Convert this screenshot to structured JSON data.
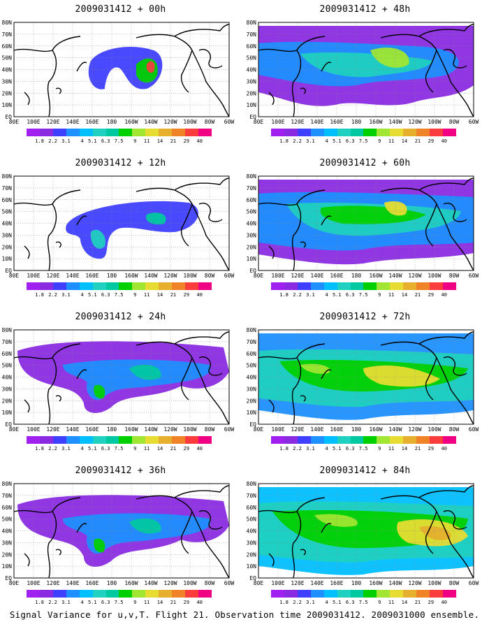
{
  "panels": [
    {
      "title": "2009031412 + 00h",
      "level": 0
    },
    {
      "title": "2009031412 + 48h",
      "level": 3
    },
    {
      "title": "2009031412 + 12h",
      "level": 1
    },
    {
      "title": "2009031412 + 60h",
      "level": 4
    },
    {
      "title": "2009031412 + 24h",
      "level": 2
    },
    {
      "title": "2009031412 + 72h",
      "level": 5
    },
    {
      "title": "2009031412 + 36h",
      "level": 2
    },
    {
      "title": "2009031412 + 84h",
      "level": 6
    }
  ],
  "lat_labels": [
    "80N",
    "70N",
    "60N",
    "50N",
    "40N",
    "30N",
    "20N",
    "10N",
    "EQ"
  ],
  "lon_labels": [
    "80E",
    "100E",
    "120E",
    "140E",
    "160E",
    "180",
    "160W",
    "140W",
    "120W",
    "100W",
    "80W",
    "60W"
  ],
  "colorbar": {
    "labels": [
      "1.8",
      "2.2",
      "3.1",
      "4",
      "5.1",
      "6.3",
      "7.5",
      "9",
      "11",
      "14",
      "21",
      "29",
      "40"
    ],
    "colors": [
      "#a020f0",
      "#8a2be2",
      "#3f3fff",
      "#1e90ff",
      "#00bfff",
      "#20d0c0",
      "#00c8a0",
      "#00d000",
      "#a0e632",
      "#e6dc32",
      "#e6af2d",
      "#f08228",
      "#fa3c3c",
      "#f00082"
    ]
  },
  "footer": "Signal Variance for u,v,T. Flight 21. Observation time 2009031412. 2009031000 ensemble."
}
